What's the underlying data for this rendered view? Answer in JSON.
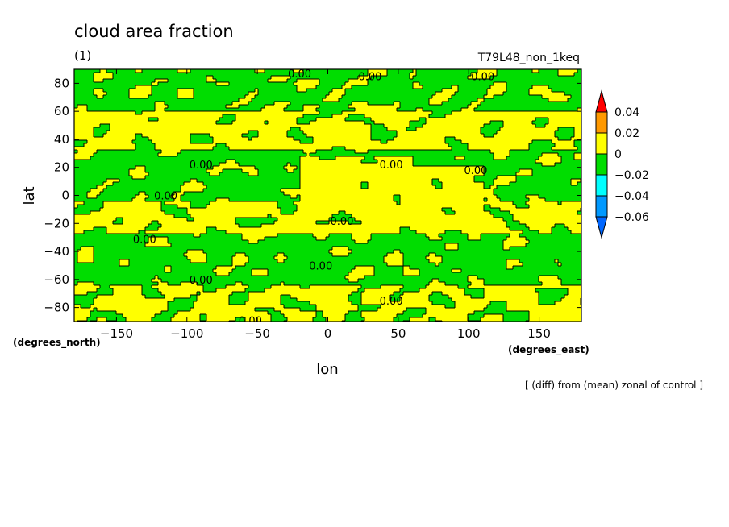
{
  "chart_data": {
    "type": "heatmap",
    "title": "cloud area fraction",
    "subtitle": "(1)",
    "run_label": "T79L48_non_1keq",
    "xlabel": "lon",
    "ylabel": "lat",
    "x_units": "(degrees_east)",
    "y_units": "(degrees_north)",
    "footnote": "[ (diff) from (mean) zonal of control ]",
    "xlim": [
      -180,
      180
    ],
    "ylim": [
      -90,
      90
    ],
    "xticks": [
      -150,
      -100,
      -50,
      0,
      50,
      100,
      150
    ],
    "yticks": [
      -80,
      -60,
      -40,
      -20,
      0,
      20,
      40,
      60,
      80
    ],
    "contour_label": "0.00",
    "contour_label_points": [
      [
        -20,
        87
      ],
      [
        30,
        85
      ],
      [
        110,
        85
      ],
      [
        -90,
        22
      ],
      [
        45,
        22
      ],
      [
        105,
        18
      ],
      [
        -115,
        0
      ],
      [
        10,
        -18
      ],
      [
        -130,
        -31
      ],
      [
        -5,
        -50
      ],
      [
        -90,
        -60
      ],
      [
        45,
        -75
      ],
      [
        -55,
        -89
      ]
    ],
    "colorbar": {
      "levels": [
        "0.04",
        "0.02",
        "0",
        "-0.02",
        "-0.04",
        "-0.06"
      ],
      "bands": [
        {
          "range": "> 0.04",
          "color": "#ff0000"
        },
        {
          "range": "0.02 – 0.04",
          "color": "#ff9900"
        },
        {
          "range": "0 – 0.02",
          "color": "#ffff00"
        },
        {
          "range": "-0.02 – 0",
          "color": "#00dd00"
        },
        {
          "range": "-0.04 – -0.02",
          "color": "#00ffff"
        },
        {
          "range": "-0.06 – -0.04",
          "color": "#0099ff"
        },
        {
          "range": "< -0.06",
          "color": "#0066ff"
        }
      ]
    },
    "regions": [
      {
        "name": "north-polar-band",
        "lat": [
          60,
          90
        ],
        "dominant": "#00dd00"
      },
      {
        "name": "northern-midlatitude-yellow-band",
        "lat": [
          30,
          55
        ],
        "dominant": "#ffff00"
      },
      {
        "name": "northern-subtropics-green-band",
        "lat": [
          -5,
          30
        ],
        "dominant": "#00dd00"
      },
      {
        "name": "equatorial-dateline-yellow-tongue",
        "lat": [
          -20,
          20
        ],
        "lon": [
          -20,
          100
        ],
        "dominant": "#ffff00"
      },
      {
        "name": "southern-subtropics-yellow-band",
        "lat": [
          -30,
          -15
        ],
        "dominant": "#ffff00"
      },
      {
        "name": "southern-midlatitude-green-band",
        "lat": [
          -65,
          -30
        ],
        "dominant": "#00dd00"
      },
      {
        "name": "south-polar-yellow-band",
        "lat": [
          -90,
          -65
        ],
        "dominant": "#ffff00"
      }
    ]
  }
}
